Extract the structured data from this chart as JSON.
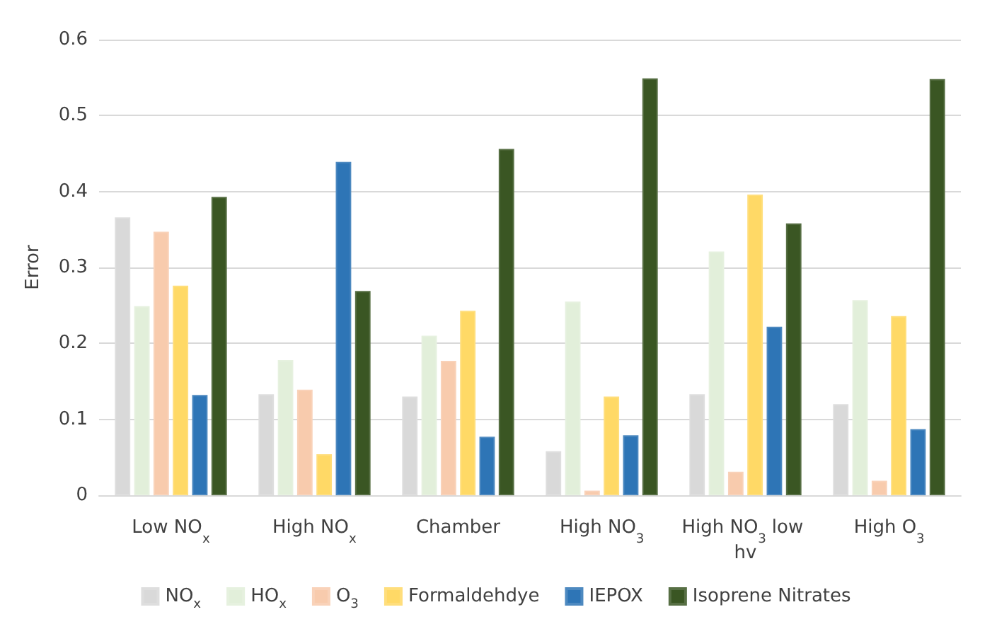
{
  "chart_data": {
    "type": "bar",
    "ylabel": "Error",
    "categories": [
      "Low NO$_{x}$",
      "High NO$_{x}$",
      "Chamber",
      "High NO$_{3}$",
      "High NO$_{3}$ low hv",
      "High O$_{3}$"
    ],
    "series": [
      {
        "name": "NO$_{x}$",
        "color": "#d9d9d9",
        "values": [
          0.366,
          0.133,
          0.13,
          0.058,
          0.133,
          0.12
        ]
      },
      {
        "name": "HO$_{x}$",
        "color": "#e2efda",
        "values": [
          0.249,
          0.178,
          0.21,
          0.255,
          0.321,
          0.257
        ]
      },
      {
        "name": "O$_{3}$",
        "color": "#f8cbad",
        "values": [
          0.347,
          0.139,
          0.177,
          0.006,
          0.031,
          0.019
        ]
      },
      {
        "name": "Formaldehdye",
        "color": "#ffd966",
        "values": [
          0.276,
          0.054,
          0.243,
          0.13,
          0.396,
          0.236
        ]
      },
      {
        "name": "IEPOX",
        "color": "#2e75b6",
        "values": [
          0.132,
          0.439,
          0.077,
          0.079,
          0.222,
          0.087
        ]
      },
      {
        "name": "Isoprene Nitrates",
        "color": "#3a5623",
        "values": [
          0.393,
          0.269,
          0.456,
          0.549,
          0.358,
          0.548
        ]
      }
    ],
    "ylim": [
      0,
      0.6
    ],
    "yticks": [
      0,
      0.1,
      0.2,
      0.3,
      0.4,
      0.5,
      0.6
    ],
    "grid": "y",
    "legend": "bottom"
  }
}
